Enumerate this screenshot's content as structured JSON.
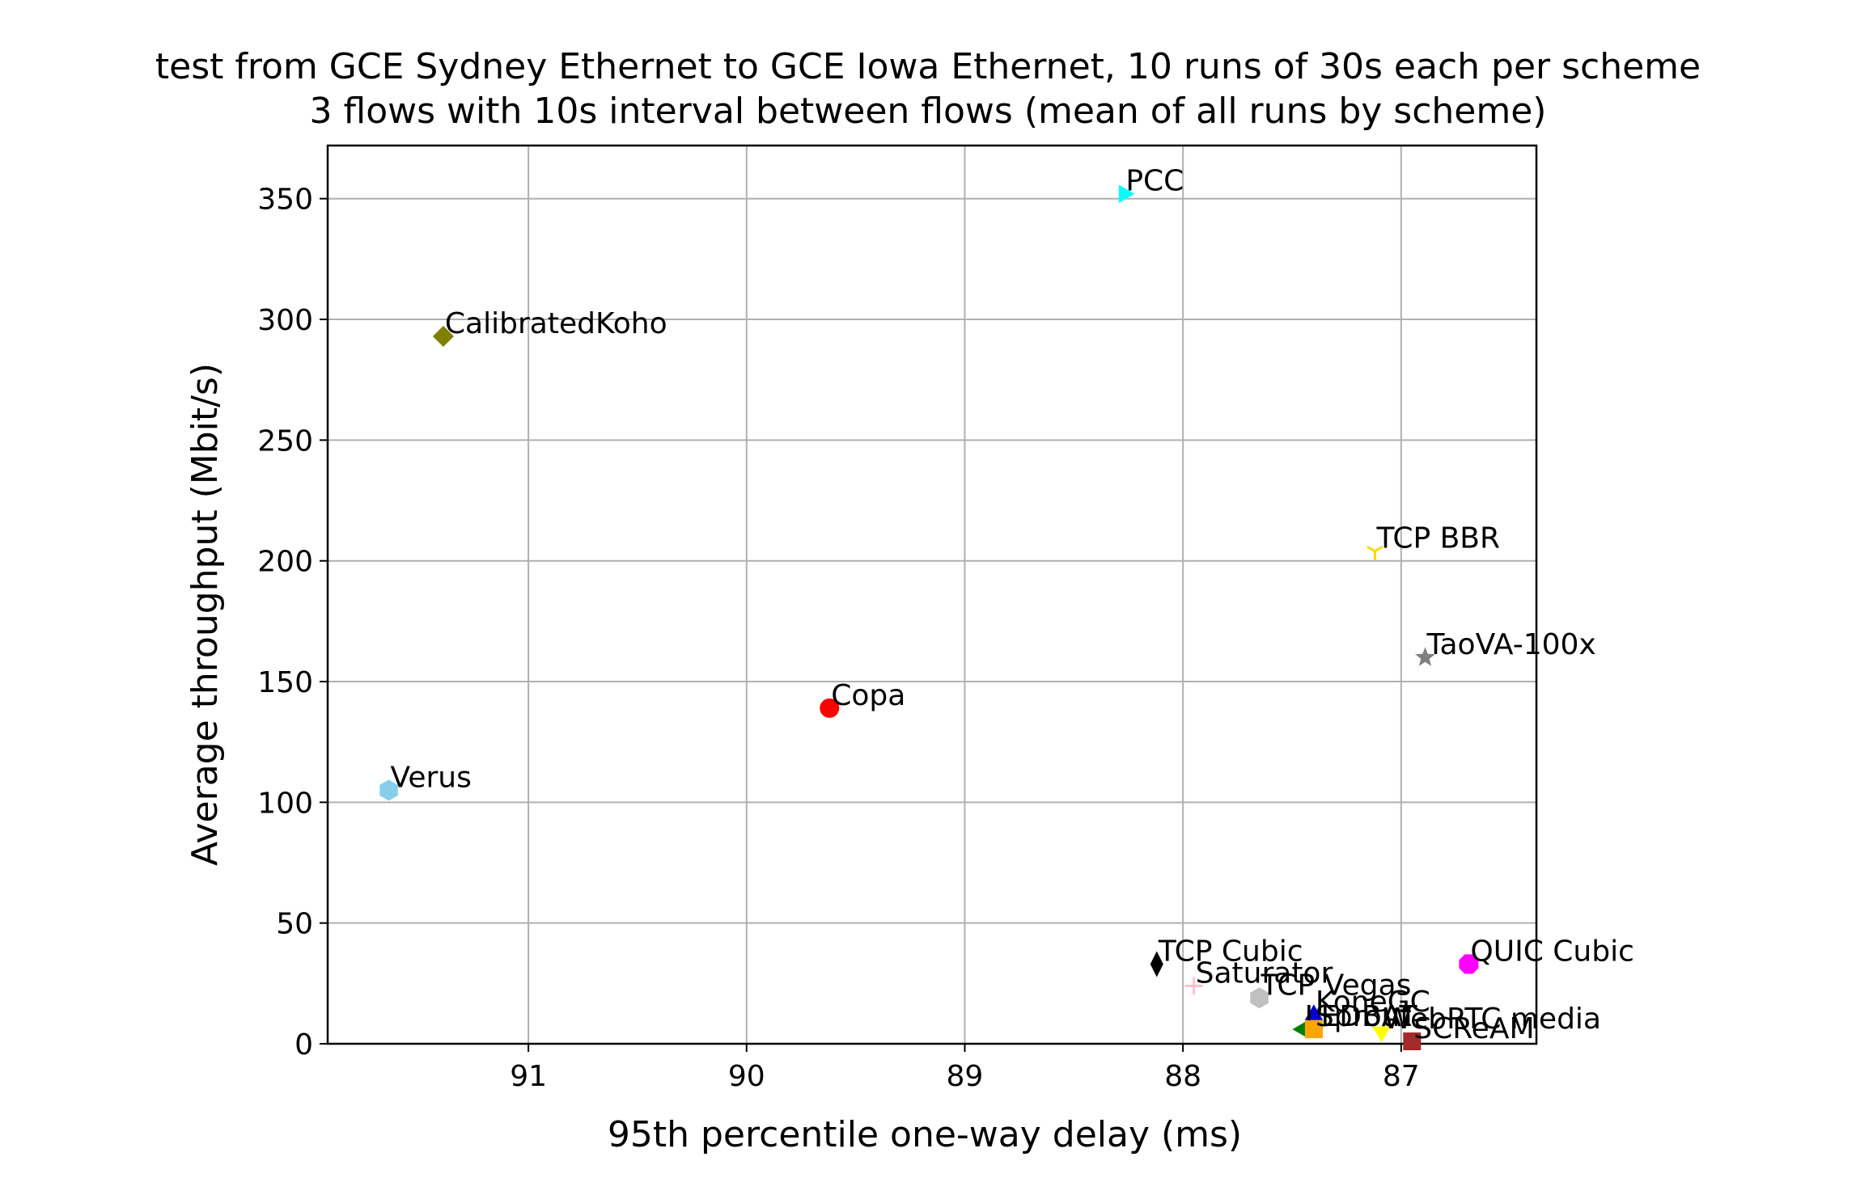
{
  "chart_data": {
    "type": "scatter",
    "title": [
      "test from GCE Sydney Ethernet to GCE Iowa Ethernet, 10 runs of 30s each per scheme",
      "3 flows with 10s interval between flows (mean of all runs by scheme)"
    ],
    "xlabel": "95th percentile one-way delay (ms)",
    "ylabel": "Average throughput (Mbit/s)",
    "xlim": [
      91.92,
      86.38
    ],
    "ylim": [
      0,
      372
    ],
    "x_inverted": true,
    "grid": true,
    "xticks": [
      91,
      90,
      89,
      88,
      87
    ],
    "xtick_labels": [
      "91",
      "90",
      "89",
      "88",
      "87"
    ],
    "yticks": [
      0,
      50,
      100,
      150,
      200,
      250,
      300,
      350
    ],
    "ytick_labels": [
      "0",
      "50",
      "100",
      "150",
      "200",
      "250",
      "300",
      "350"
    ],
    "points": [
      {
        "label": "PCC",
        "x": 88.27,
        "y": 352,
        "color": "#00ffff",
        "marker": "triangle-right"
      },
      {
        "label": "CalibratedKoho",
        "x": 91.39,
        "y": 293,
        "color": "#808000",
        "marker": "diamond"
      },
      {
        "label": "TCP BBR",
        "x": 87.12,
        "y": 204,
        "color": "#ffd700",
        "marker": "tri-down"
      },
      {
        "label": "TaoVA-100x",
        "x": 86.89,
        "y": 160,
        "color": "#808080",
        "marker": "star"
      },
      {
        "label": "Copa",
        "x": 89.62,
        "y": 139,
        "color": "#ff0000",
        "marker": "circle"
      },
      {
        "label": "Verus",
        "x": 91.64,
        "y": 105,
        "color": "#87ceeb",
        "marker": "hexagon"
      },
      {
        "label": "TCP Cubic",
        "x": 88.12,
        "y": 33,
        "color": "#000000",
        "marker": "thin-diamond"
      },
      {
        "label": "QUIC Cubic",
        "x": 86.69,
        "y": 33,
        "color": "#ff00ff",
        "marker": "octagon"
      },
      {
        "label": "Saturator",
        "x": 87.95,
        "y": 24,
        "color": "#ffc0cb",
        "marker": "plus"
      },
      {
        "label": "TCP Vegas",
        "x": 87.65,
        "y": 19,
        "color": "#c0c0c0",
        "marker": "hexagon"
      },
      {
        "label": "KoneGC",
        "x": 87.4,
        "y": 12,
        "color": "#0000cd",
        "marker": "triangle-up"
      },
      {
        "label": "LEDBAT",
        "x": 87.45,
        "y": 6,
        "color": "#008000",
        "marker": "triangle-left"
      },
      {
        "label": "Sprout",
        "x": 87.4,
        "y": 6,
        "color": "#ffa500",
        "marker": "square"
      },
      {
        "label": "WebRTC media",
        "x": 87.09,
        "y": 5,
        "color": "#ffff00",
        "marker": "triangle-down"
      },
      {
        "label": "SCReAM",
        "x": 86.95,
        "y": 1,
        "color": "#a52a2a",
        "marker": "square"
      }
    ]
  }
}
